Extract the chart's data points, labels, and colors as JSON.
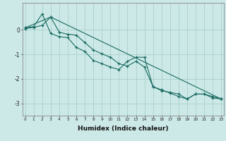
{
  "xlabel": "Humidex (Indice chaleur)",
  "bg_color": "#cce9e7",
  "line_color": "#1a6b62",
  "grid_color": "#aacfcc",
  "x_ticks": [
    0,
    1,
    2,
    3,
    4,
    5,
    6,
    7,
    8,
    9,
    10,
    11,
    12,
    13,
    14,
    15,
    16,
    17,
    18,
    19,
    20,
    21,
    22,
    23
  ],
  "xlim": [
    -0.3,
    23.3
  ],
  "ylim": [
    -3.5,
    1.1
  ],
  "y_ticks": [
    0,
    -1,
    -2,
    -3
  ],
  "series1": {
    "x": [
      0,
      1,
      2,
      3,
      4,
      5,
      6,
      7,
      8,
      9,
      10,
      11,
      12,
      13,
      14,
      15,
      16,
      17,
      18,
      19,
      20,
      21,
      22,
      23
    ],
    "y": [
      0.08,
      0.13,
      0.65,
      -0.15,
      -0.28,
      -0.32,
      -0.72,
      -0.88,
      -1.25,
      -1.38,
      -1.52,
      -1.62,
      -1.28,
      -1.12,
      -1.12,
      -2.32,
      -2.48,
      -2.55,
      -2.62,
      -2.82,
      -2.62,
      -2.62,
      -2.78,
      -2.82
    ]
  },
  "series2": {
    "x": [
      0,
      1,
      2,
      3,
      4,
      5,
      6,
      7,
      8,
      9,
      10,
      11,
      12,
      13,
      14,
      15,
      16,
      17,
      18,
      19,
      20,
      21,
      22,
      23
    ],
    "y": [
      0.05,
      0.1,
      0.18,
      0.52,
      -0.1,
      -0.18,
      -0.22,
      -0.52,
      -0.82,
      -0.98,
      -1.12,
      -1.38,
      -1.48,
      -1.28,
      -1.52,
      -2.32,
      -2.45,
      -2.58,
      -2.72,
      -2.82,
      -2.62,
      -2.62,
      -2.72,
      -2.82
    ]
  },
  "series3": {
    "x": [
      0,
      3,
      23
    ],
    "y": [
      0.08,
      0.52,
      -2.82
    ]
  }
}
